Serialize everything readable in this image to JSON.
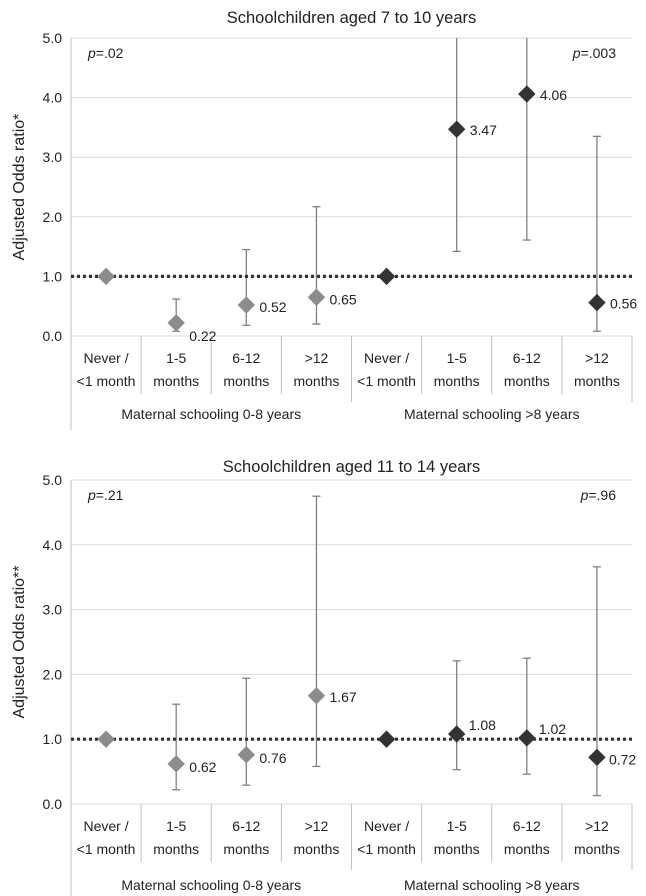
{
  "chart_data": [
    {
      "type": "scatter",
      "title": "Schoolchildren aged 7 to 10 years",
      "ylabel": "Adjusted Odds ratio*",
      "ylim": [
        0,
        5
      ],
      "yticks": [
        "0.0",
        "1.0",
        "2.0",
        "3.0",
        "4.0",
        "5.0"
      ],
      "reference_line": 1.0,
      "grid": true,
      "categories": [
        "Never / <1 month",
        "1-5 months",
        "6-12 months",
        ">12 months",
        "Never / <1 month",
        "1-5 months",
        "6-12 months",
        ">12 months"
      ],
      "groups": [
        {
          "label": "Maternal schooling 0-8 years",
          "p_text": "p=.02",
          "color": "#8c8c8c"
        },
        {
          "label": "Maternal schooling >8 years",
          "p_text": "p=.003",
          "color": "#333333"
        }
      ],
      "points": [
        {
          "value": 1.0,
          "low": null,
          "high": null,
          "label": ""
        },
        {
          "value": 0.22,
          "low": 0.08,
          "high": 0.62,
          "label": "0.22"
        },
        {
          "value": 0.52,
          "low": 0.18,
          "high": 1.45,
          "label": "0.52"
        },
        {
          "value": 0.65,
          "low": 0.2,
          "high": 2.17,
          "label": "0.65"
        },
        {
          "value": 1.0,
          "low": null,
          "high": null,
          "label": ""
        },
        {
          "value": 3.47,
          "low": 1.42,
          "high": 5.0,
          "label": "3.47"
        },
        {
          "value": 4.06,
          "low": 1.61,
          "high": 5.0,
          "label": "4.06"
        },
        {
          "value": 0.56,
          "low": 0.08,
          "high": 3.35,
          "label": "0.56"
        }
      ]
    },
    {
      "type": "scatter",
      "title": "Schoolchildren aged 11 to 14 years",
      "ylabel": "Adjusted Odds ratio**",
      "ylim": [
        0,
        5
      ],
      "yticks": [
        "0.0",
        "1.0",
        "2.0",
        "3.0",
        "4.0",
        "5.0"
      ],
      "reference_line": 1.0,
      "grid": true,
      "categories": [
        "Never / <1 month",
        "1-5 months",
        "6-12 months",
        ">12 months",
        "Never / <1 month",
        "1-5 months",
        "6-12 months",
        ">12 months"
      ],
      "groups": [
        {
          "label": "Maternal schooling 0-8 years",
          "p_text": "p=.21",
          "color": "#8c8c8c"
        },
        {
          "label": "Maternal schooling >8 years",
          "p_text": "p=.96",
          "color": "#333333"
        }
      ],
      "points": [
        {
          "value": 1.0,
          "low": null,
          "high": null,
          "label": ""
        },
        {
          "value": 0.62,
          "low": 0.22,
          "high": 1.54,
          "label": "0.62"
        },
        {
          "value": 0.76,
          "low": 0.29,
          "high": 1.94,
          "label": "0.76"
        },
        {
          "value": 1.67,
          "low": 0.58,
          "high": 4.75,
          "label": "1.67"
        },
        {
          "value": 1.0,
          "low": null,
          "high": null,
          "label": ""
        },
        {
          "value": 1.08,
          "low": 0.53,
          "high": 2.21,
          "label": "1.08"
        },
        {
          "value": 1.02,
          "low": 0.46,
          "high": 2.25,
          "label": "1.02"
        },
        {
          "value": 0.72,
          "low": 0.13,
          "high": 3.66,
          "label": "0.72"
        }
      ]
    }
  ]
}
